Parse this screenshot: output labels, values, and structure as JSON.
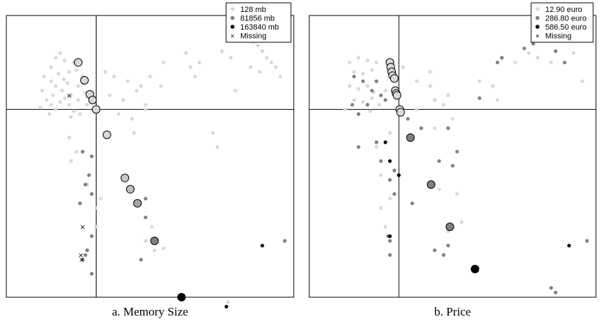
{
  "chart_data": [
    {
      "type": "scatter",
      "title": "",
      "caption": "a. Memory Size",
      "xlabel": "",
      "ylabel": "",
      "xlim": [
        -1.0,
        2.2
      ],
      "ylim": [
        -2.0,
        1.0
      ],
      "crosshair": {
        "x": 0,
        "y": 0
      },
      "grid": false,
      "legend_placement": "top-right",
      "legend": [
        {
          "label": "128 mb",
          "color": "#d9d9d9",
          "marker": "dot"
        },
        {
          "label": "81856 mb",
          "color": "#808080",
          "marker": "dot"
        },
        {
          "label": "163840 mb",
          "color": "#000000",
          "marker": "dot"
        },
        {
          "label": "Missing",
          "color": "#000000",
          "marker": "x"
        }
      ],
      "series": [
        {
          "name": "128 mb",
          "color": "#d9d9d9",
          "points": [
            [
              -0.45,
              0.55
            ],
            [
              -0.4,
              0.6
            ],
            [
              -0.35,
              0.52
            ],
            [
              -0.5,
              0.45
            ],
            [
              -0.42,
              0.38
            ],
            [
              -0.3,
              0.4
            ],
            [
              -0.25,
              0.5
            ],
            [
              -0.5,
              0.3
            ],
            [
              -0.45,
              0.25
            ],
            [
              -0.38,
              0.2
            ],
            [
              -0.32,
              0.28
            ],
            [
              -0.28,
              0.15
            ],
            [
              -0.2,
              0.25
            ],
            [
              -0.15,
              0.35
            ],
            [
              -0.55,
              0.1
            ],
            [
              -0.5,
              0.05
            ],
            [
              -0.45,
              0.0
            ],
            [
              -0.4,
              0.08
            ],
            [
              -0.35,
              0.12
            ],
            [
              -0.3,
              0.05
            ],
            [
              -0.25,
              -0.02
            ],
            [
              -0.2,
              0.1
            ],
            [
              -0.12,
              0.18
            ],
            [
              -0.6,
              0.2
            ],
            [
              -0.48,
              0.15
            ],
            [
              -0.36,
              0.32
            ],
            [
              -0.22,
              0.42
            ],
            [
              -0.58,
              0.35
            ],
            [
              -0.62,
              0.02
            ],
            [
              -0.52,
              -0.05
            ],
            [
              -0.28,
              -0.08
            ],
            [
              -0.18,
              -0.05
            ],
            [
              -0.1,
              0.05
            ],
            [
              -0.15,
              0.28
            ],
            [
              0.1,
              0.4
            ],
            [
              0.2,
              0.35
            ],
            [
              0.35,
              0.3
            ],
            [
              0.5,
              0.25
            ],
            [
              0.15,
              0.15
            ],
            [
              0.3,
              0.1
            ],
            [
              0.45,
              0.2
            ],
            [
              0.55,
              0.0
            ],
            [
              0.25,
              -0.05
            ],
            [
              0.4,
              -0.1
            ],
            [
              0.6,
              0.35
            ],
            [
              0.55,
              0.05
            ],
            [
              0.75,
              0.5
            ],
            [
              0.72,
              0.25
            ],
            [
              1.0,
              0.6
            ],
            [
              1.05,
              0.45
            ],
            [
              1.1,
              0.35
            ],
            [
              1.15,
              0.5
            ],
            [
              1.4,
              0.62
            ],
            [
              1.5,
              0.55
            ],
            [
              1.7,
              0.8
            ],
            [
              1.75,
              0.72
            ],
            [
              1.8,
              0.68
            ],
            [
              1.85,
              0.62
            ],
            [
              1.9,
              0.55
            ],
            [
              1.95,
              0.5
            ],
            [
              2.0,
              0.45
            ],
            [
              1.72,
              0.45
            ],
            [
              1.82,
              0.4
            ],
            [
              2.05,
              0.35
            ],
            [
              1.55,
              0.2
            ],
            [
              1.3,
              -0.25
            ],
            [
              1.35,
              -0.4
            ],
            [
              1.9,
              0.9
            ],
            [
              0.42,
              -0.25
            ],
            [
              -0.3,
              -0.3
            ],
            [
              -0.22,
              -0.45
            ],
            [
              -0.28,
              -0.55
            ],
            [
              -0.1,
              -0.8
            ],
            [
              0.0,
              -1.05
            ],
            [
              0.0,
              -1.25
            ],
            [
              -0.1,
              -1.5
            ],
            [
              0.05,
              -0.95
            ],
            [
              0.55,
              -1.4
            ],
            [
              0.65,
              -1.5
            ],
            [
              0.75,
              -1.48
            ],
            [
              0.62,
              -1.25
            ],
            [
              1.47,
              -2.05
            ]
          ]
        },
        {
          "name": "81856 mb",
          "color": "#808080",
          "points": [
            [
              -0.15,
              -0.45
            ],
            [
              -0.05,
              -0.5
            ],
            [
              -0.08,
              -0.7
            ],
            [
              -0.12,
              -0.8
            ],
            [
              -0.05,
              -0.9
            ],
            [
              -0.18,
              -1.0
            ],
            [
              -0.05,
              -1.35
            ],
            [
              -0.12,
              -1.55
            ],
            [
              -0.15,
              -1.6
            ],
            [
              -0.05,
              -1.75
            ],
            [
              -0.1,
              -1.5
            ],
            [
              0.5,
              -1.6
            ],
            [
              0.55,
              -0.95
            ],
            [
              0.55,
              -1.15
            ],
            [
              2.1,
              -1.4
            ]
          ]
        },
        {
          "name": "163840 mb",
          "color": "#000000",
          "points": [
            [
              1.85,
              -1.45
            ],
            [
              1.45,
              -2.1
            ]
          ]
        },
        {
          "name": "Missing",
          "marker": "x",
          "color": "#000000",
          "points": [
            [
              -0.3,
              0.15
            ],
            [
              -0.15,
              -1.25
            ],
            [
              -0.17,
              -1.55
            ],
            [
              -0.16,
              -1.6
            ]
          ]
        },
        {
          "name": "outlined",
          "outline": true,
          "points": [
            {
              "x": -0.2,
              "y": 0.5,
              "color": "#d9d9d9"
            },
            {
              "x": -0.13,
              "y": 0.31,
              "color": "#d9d9d9"
            },
            {
              "x": -0.07,
              "y": 0.16,
              "color": "#d9d9d9"
            },
            {
              "x": -0.04,
              "y": 0.1,
              "color": "#d9d9d9"
            },
            {
              "x": 0.0,
              "y": 0.0,
              "color": "#d9d9d9"
            },
            {
              "x": 0.12,
              "y": -0.27,
              "color": "#d9d9d9"
            },
            {
              "x": 0.32,
              "y": -0.73,
              "color": "#c8c8c8"
            },
            {
              "x": 0.38,
              "y": -0.85,
              "color": "#bdbdbd"
            },
            {
              "x": 0.46,
              "y": -1.0,
              "color": "#a6a6a6"
            },
            {
              "x": 0.65,
              "y": -1.4,
              "color": "#808080"
            },
            {
              "x": 0.95,
              "y": -2.0,
              "color": "#000000"
            }
          ]
        }
      ]
    },
    {
      "type": "scatter",
      "title": "",
      "caption": "b. Price",
      "xlabel": "",
      "ylabel": "",
      "xlim": [
        -1.0,
        2.2
      ],
      "ylim": [
        -2.0,
        1.0
      ],
      "crosshair": {
        "x": 0,
        "y": 0
      },
      "grid": false,
      "legend_placement": "top-right",
      "legend": [
        {
          "label": "12.90 euro",
          "color": "#d9d9d9",
          "marker": "dot"
        },
        {
          "label": "286.80 euro",
          "color": "#808080",
          "marker": "dot"
        },
        {
          "label": "586.50 euro",
          "color": "#000000",
          "marker": "dot"
        },
        {
          "label": "Missing",
          "color": "#000000",
          "marker": "x"
        }
      ],
      "series": [
        {
          "name": "12.90 euro",
          "color": "#d9d9d9",
          "points": [
            [
              -0.55,
              0.5
            ],
            [
              -0.45,
              0.55
            ],
            [
              -0.35,
              0.52
            ],
            [
              -0.25,
              0.5
            ],
            [
              -0.5,
              0.4
            ],
            [
              -0.4,
              0.38
            ],
            [
              -0.3,
              0.42
            ],
            [
              -0.55,
              0.25
            ],
            [
              -0.45,
              0.22
            ],
            [
              -0.35,
              0.25
            ],
            [
              -0.28,
              0.18
            ],
            [
              -0.5,
              0.1
            ],
            [
              -0.4,
              0.08
            ],
            [
              -0.3,
              0.12
            ],
            [
              -0.22,
              0.05
            ],
            [
              -0.15,
              0.2
            ],
            [
              -0.6,
              0.0
            ],
            [
              -0.45,
              -0.05
            ],
            [
              -0.32,
              -0.02
            ],
            [
              0.05,
              0.45
            ],
            [
              0.2,
              0.3
            ],
            [
              0.35,
              0.25
            ],
            [
              0.55,
              0.15
            ],
            [
              0.2,
              0.0
            ],
            [
              0.4,
              0.1
            ],
            [
              0.5,
              0.05
            ],
            [
              0.6,
              -0.1
            ],
            [
              0.9,
              0.3
            ],
            [
              1.05,
              0.25
            ],
            [
              1.1,
              0.1
            ],
            [
              1.45,
              0.6
            ],
            [
              1.55,
              0.55
            ],
            [
              1.85,
              0.8
            ],
            [
              1.7,
              0.5
            ],
            [
              1.95,
              0.6
            ],
            [
              1.3,
              0.5
            ],
            [
              2.05,
              0.3
            ],
            [
              0.65,
              -0.9
            ],
            [
              0.45,
              -0.85
            ],
            [
              0.7,
              -1.2
            ],
            [
              0.55,
              -1.3
            ],
            [
              -0.2,
              -0.7
            ],
            [
              -0.1,
              -0.95
            ],
            [
              -0.2,
              -1.05
            ],
            [
              -0.15,
              -1.25
            ],
            [
              -0.25,
              -0.4
            ],
            [
              -0.1,
              -0.25
            ],
            [
              0.4,
              -0.2
            ],
            [
              0.35,
              0.4
            ],
            [
              1.85,
              0.9
            ]
          ]
        },
        {
          "name": "286.80 euro",
          "color": "#808080",
          "points": [
            [
              -0.5,
              0.35
            ],
            [
              -0.4,
              0.3
            ],
            [
              -0.3,
              0.2
            ],
            [
              -0.2,
              0.15
            ],
            [
              -0.45,
              -0.05
            ],
            [
              -0.35,
              0.05
            ],
            [
              -0.52,
              0.05
            ],
            [
              -0.25,
              0.3
            ],
            [
              -0.15,
              0.1
            ],
            [
              0.1,
              -0.1
            ],
            [
              0.25,
              -0.2
            ],
            [
              0.55,
              -0.2
            ],
            [
              0.9,
              0.12
            ],
            [
              1.1,
              0.5
            ],
            [
              1.15,
              0.55
            ],
            [
              1.4,
              0.65
            ],
            [
              1.5,
              0.7
            ],
            [
              1.6,
              0.75
            ],
            [
              1.75,
              0.62
            ],
            [
              1.85,
              0.5
            ],
            [
              0.65,
              -0.45
            ],
            [
              0.6,
              -0.6
            ],
            [
              0.45,
              -0.55
            ],
            [
              -0.2,
              -0.55
            ],
            [
              -0.05,
              -0.65
            ],
            [
              -0.1,
              -0.75
            ],
            [
              -0.05,
              -0.9
            ],
            [
              0.15,
              -1.0
            ],
            [
              -0.45,
              -0.4
            ],
            [
              -0.25,
              -0.35
            ],
            [
              0.4,
              -1.5
            ],
            [
              0.55,
              -1.45
            ],
            [
              0.5,
              -1.55
            ],
            [
              1.7,
              -1.9
            ],
            [
              1.75,
              -1.95
            ],
            [
              2.1,
              -1.4
            ],
            [
              -0.1,
              -1.4
            ],
            [
              -0.12,
              -1.35
            ],
            [
              -0.1,
              -1.55
            ]
          ]
        },
        {
          "name": "586.50 euro",
          "color": "#000000",
          "points": [
            [
              -0.15,
              -0.35
            ],
            [
              -0.1,
              -0.55
            ],
            [
              0.0,
              -0.7
            ],
            [
              -0.1,
              -1.35
            ],
            [
              1.9,
              -1.45
            ]
          ]
        },
        {
          "name": "outlined",
          "outline": true,
          "points": [
            {
              "x": -0.1,
              "y": 0.5,
              "color": "#d9d9d9"
            },
            {
              "x": -0.09,
              "y": 0.45,
              "color": "#d9d9d9"
            },
            {
              "x": -0.08,
              "y": 0.4,
              "color": "#d9d9d9"
            },
            {
              "x": -0.07,
              "y": 0.36,
              "color": "#d9d9d9"
            },
            {
              "x": -0.05,
              "y": 0.33,
              "color": "#d9d9d9"
            },
            {
              "x": -0.04,
              "y": 0.2,
              "color": "#d9d9d9"
            },
            {
              "x": -0.03,
              "y": 0.17,
              "color": "#d9d9d9"
            },
            {
              "x": -0.02,
              "y": 0.15,
              "color": "#d9d9d9"
            },
            {
              "x": 0.01,
              "y": 0.0,
              "color": "#d9d9d9"
            },
            {
              "x": 0.02,
              "y": -0.03,
              "color": "#d9d9d9"
            },
            {
              "x": 0.13,
              "y": -0.3,
              "color": "#808080"
            },
            {
              "x": 0.36,
              "y": -0.8,
              "color": "#808080"
            },
            {
              "x": 0.57,
              "y": -1.25,
              "color": "#808080"
            },
            {
              "x": 0.85,
              "y": -1.7,
              "color": "#000000"
            }
          ]
        }
      ]
    }
  ]
}
